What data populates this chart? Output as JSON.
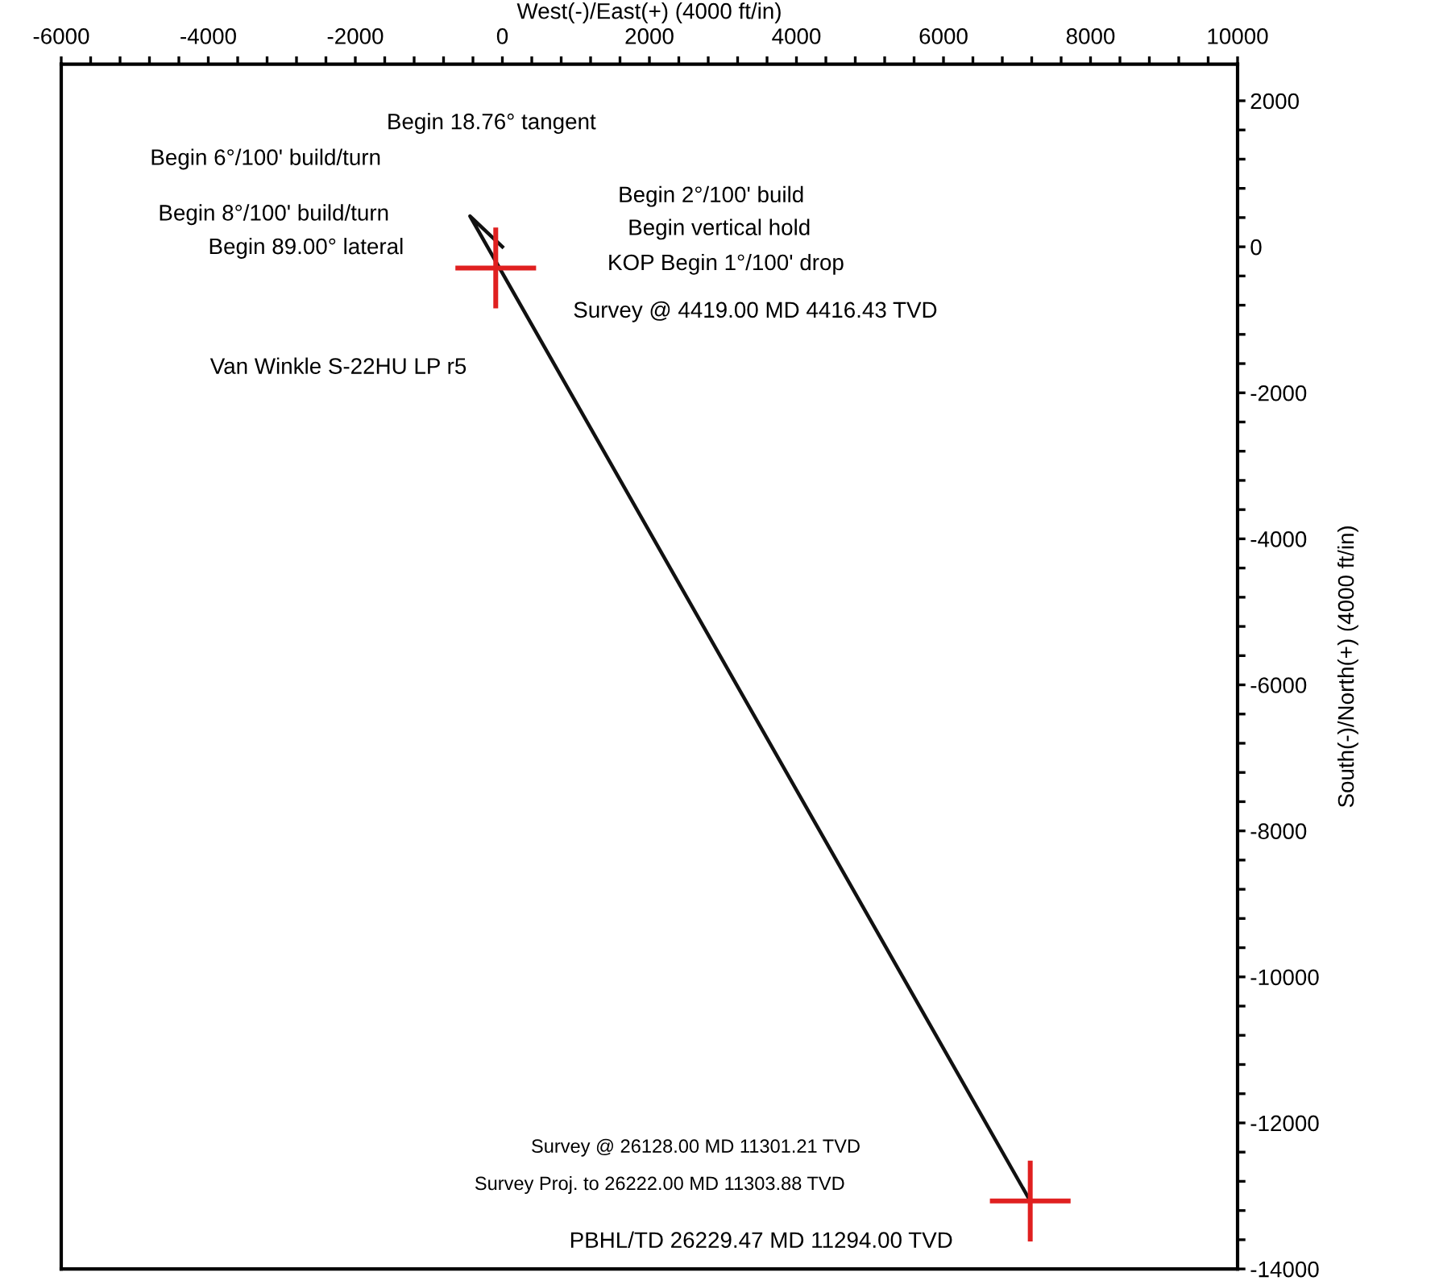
{
  "chart_data": {
    "type": "line",
    "xlabel": "West(-)/East(+) (4000 ft/in)",
    "ylabel": "South(-)/North(+) (4000 ft/in)",
    "series": [
      {
        "color": "#111111",
        "x": [
          0,
          -440,
          7180
        ],
        "values": [
          0,
          420,
          -13070
        ],
        "marker": "none",
        "line_style": "solid"
      },
      {
        "type": "scatter",
        "color": "#e02020",
        "x": [
          -90,
          7180
        ],
        "values": [
          -290,
          -13070
        ],
        "marker": "cross"
      }
    ],
    "xlim": [
      -6000,
      10000
    ],
    "ylim": [
      -14000,
      2500
    ],
    "xticks": [
      -6000,
      {
        "value": -5600,
        "label": null
      },
      {
        "value": -5200,
        "label": null
      },
      {
        "value": -4800,
        "label": null
      },
      {
        "value": -4400,
        "label": null
      },
      -4000,
      {
        "value": -3600,
        "label": null
      },
      {
        "value": -3200,
        "label": null
      },
      {
        "value": -2800,
        "label": null
      },
      {
        "value": -2400,
        "label": null
      },
      -2000,
      {
        "value": -1600,
        "label": null
      },
      {
        "value": -1200,
        "label": null
      },
      {
        "value": -800,
        "label": null
      },
      {
        "value": -400,
        "label": null
      },
      0,
      {
        "value": 400,
        "label": null
      },
      {
        "value": 800,
        "label": null
      },
      {
        "value": 1200,
        "label": null
      },
      {
        "value": 1600,
        "label": null
      },
      2000,
      {
        "value": 2400,
        "label": null
      },
      {
        "value": 2800,
        "label": null
      },
      {
        "value": 3200,
        "label": null
      },
      {
        "value": 3600,
        "label": null
      },
      4000,
      {
        "value": 4400,
        "label": null
      },
      {
        "value": 4800,
        "label": null
      },
      {
        "value": 5200,
        "label": null
      },
      {
        "value": 5600,
        "label": null
      },
      6000,
      {
        "value": 6400,
        "label": null
      },
      {
        "value": 6800,
        "label": null
      },
      {
        "value": 7200,
        "label": null
      },
      {
        "value": 7600,
        "label": null
      },
      8000,
      {
        "value": 8400,
        "label": null
      },
      {
        "value": 8800,
        "label": null
      },
      {
        "value": 9200,
        "label": null
      },
      {
        "value": 9600,
        "label": null
      },
      10000
    ],
    "yticks": [
      -14000,
      {
        "value": -13600,
        "label": null
      },
      {
        "value": -13200,
        "label": null
      },
      {
        "value": -12800,
        "label": null
      },
      {
        "value": -12400,
        "label": null
      },
      -12000,
      {
        "value": -11600,
        "label": null
      },
      {
        "value": -11200,
        "label": null
      },
      {
        "value": -10800,
        "label": null
      },
      {
        "value": -10400,
        "label": null
      },
      -10000,
      {
        "value": -9600,
        "label": null
      },
      {
        "value": -9200,
        "label": null
      },
      {
        "value": -8800,
        "label": null
      },
      {
        "value": -8400,
        "label": null
      },
      -8000,
      {
        "value": -7600,
        "label": null
      },
      {
        "value": -7200,
        "label": null
      },
      {
        "value": -6800,
        "label": null
      },
      {
        "value": -6400,
        "label": null
      },
      -6000,
      {
        "value": -5600,
        "label": null
      },
      {
        "value": -5200,
        "label": null
      },
      {
        "value": -4800,
        "label": null
      },
      {
        "value": -4400,
        "label": null
      },
      -4000,
      {
        "value": -3600,
        "label": null
      },
      {
        "value": -3200,
        "label": null
      },
      {
        "value": -2800,
        "label": null
      },
      {
        "value": -2400,
        "label": null
      },
      -2000,
      {
        "value": -1600,
        "label": null
      },
      {
        "value": -1200,
        "label": null
      },
      {
        "value": -800,
        "label": null
      },
      {
        "value": -400,
        "label": null
      },
      0,
      {
        "value": 400,
        "label": null
      },
      {
        "value": 800,
        "label": null
      },
      {
        "value": 1200,
        "label": null
      },
      {
        "value": 1600,
        "label": null
      },
      2000
    ],
    "grid": false,
    "legend": false,
    "annotations": [
      "Begin 18.76° tangent",
      "Begin 6°/100' build/turn",
      "Begin 8°/100' build/turn",
      "Begin 89.00° lateral",
      "Begin 2°/100' build",
      "Begin vertical hold",
      "KOP Begin 1°/100' drop",
      "Survey @ 4419.00 MD 4416.43 TVD",
      "Van Winkle S-22HU LP r5",
      "Survey @ 26128.00 MD 11301.21 TVD",
      "Survey Proj. to 26222.00 MD 11303.88 TVD",
      "PBHL/TD 26229.47 MD 11294.00 TVD"
    ]
  }
}
